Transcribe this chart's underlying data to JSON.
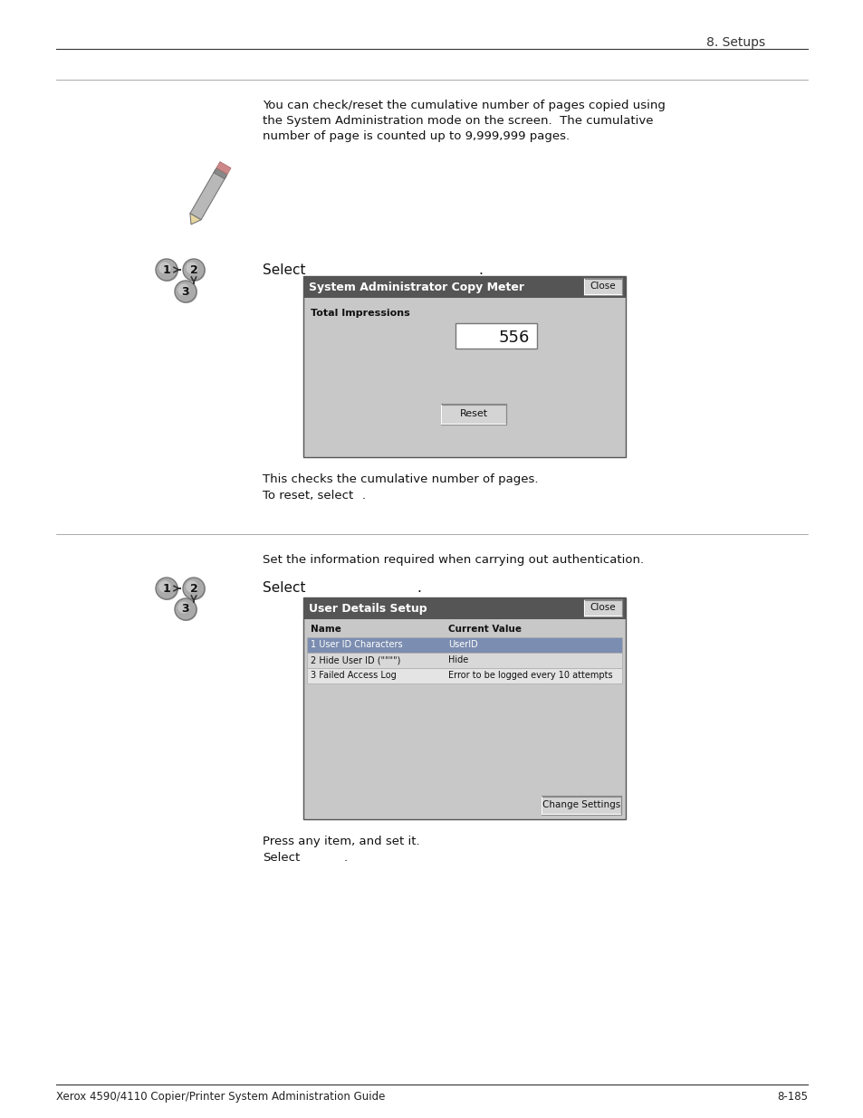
{
  "page_title": "8. Setups",
  "footer_left": "Xerox 4590/4110 Copier/Printer System Administration Guide",
  "footer_right": "8-185",
  "section1": {
    "intro_lines": [
      "You can check/reset the cumulative number of pages copied using",
      "the System Administration mode on the screen.  The cumulative",
      "number of page is counted up to 9,999,999 pages."
    ],
    "select_text": "Select",
    "select_dot": ".",
    "dialog_title": "System Administrator Copy Meter",
    "dialog_close_btn": "Close",
    "total_impressions_label": "Total Impressions",
    "value": "556",
    "reset_btn": "Reset",
    "note1": "This checks the cumulative number of pages.",
    "note2": "To reset, select",
    "note2_dot": "."
  },
  "section2": {
    "intro_text": "Set the information required when carrying out authentication.",
    "select_text": "Select",
    "select_dot": ".",
    "dialog_title": "User Details Setup",
    "dialog_close_btn": "Close",
    "col1_header": "Name",
    "col2_header": "Current Value",
    "rows": [
      [
        "1 User ID Characters",
        "UserID"
      ],
      [
        "2 Hide User ID (\"\"\"\")",
        "Hide"
      ],
      [
        "3 Failed Access Log",
        "Error to be logged every 10 attempts"
      ]
    ],
    "change_settings_btn": "Change Settings",
    "note1": "Press any item, and set it.",
    "note2": "Select",
    "note2_dot": "."
  },
  "bg_color": "#ffffff",
  "dialog_bg": "#c8c8c8",
  "dialog_header_bg": "#555555",
  "row_selected_bg": "#7b8db0",
  "row_even_bg": "#d8d8d8",
  "row_odd_bg": "#e4e4e4"
}
